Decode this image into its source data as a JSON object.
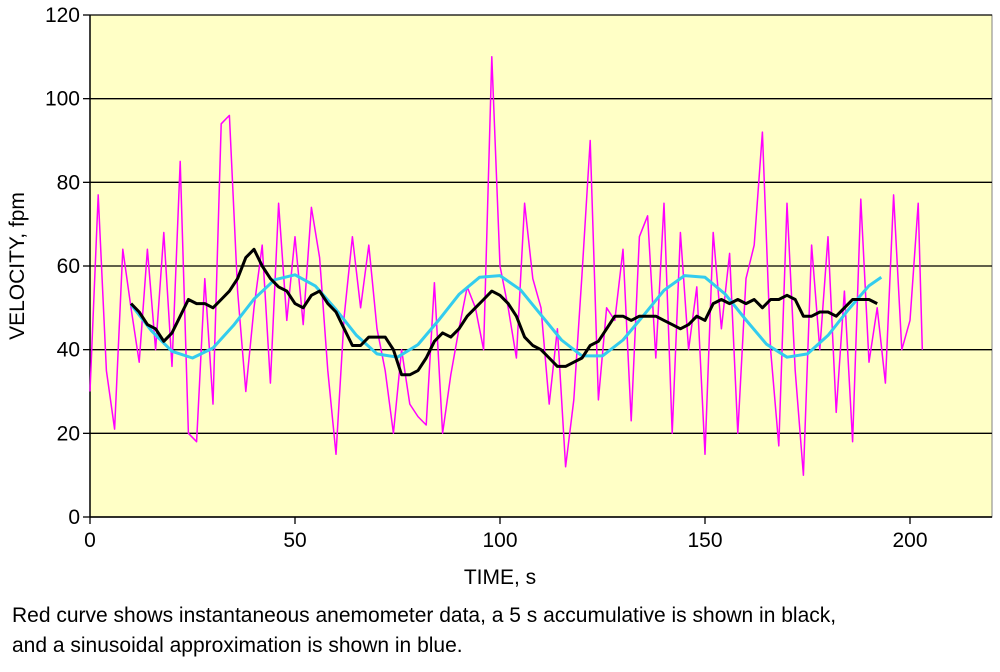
{
  "chart_data": {
    "type": "line",
    "xlabel": "TIME, s",
    "ylabel": "VELOCITY, fpm",
    "caption": [
      "Red curve shows instantaneous anemometer data, a 5 s accumulative is shown in black,",
      "and a sinusoidal approximation is shown in blue."
    ],
    "xlim": [
      0,
      220
    ],
    "xticks": [
      0,
      50,
      100,
      150,
      200
    ],
    "ylim": [
      0,
      120
    ],
    "yticks": [
      0,
      20,
      40,
      60,
      80,
      100,
      120
    ],
    "grid": true,
    "background": "#ffffc6",
    "series": [
      {
        "color": "#ff00ff",
        "x": [
          0,
          2,
          4,
          6,
          8,
          10,
          12,
          14,
          16,
          18,
          20,
          22,
          24,
          26,
          28,
          30,
          32,
          34,
          36,
          38,
          40,
          42,
          44,
          46,
          48,
          50,
          52,
          54,
          56,
          58,
          60,
          62,
          64,
          66,
          68,
          70,
          72,
          74,
          76,
          78,
          80,
          82,
          84,
          86,
          88,
          90,
          92,
          94,
          96,
          98,
          100,
          102,
          104,
          106,
          108,
          110,
          112,
          114,
          116,
          118,
          120,
          122,
          124,
          126,
          128,
          130,
          132,
          134,
          136,
          138,
          140,
          142,
          144,
          146,
          148,
          150,
          152,
          154,
          156,
          158,
          160,
          162,
          164,
          166,
          168,
          170,
          172,
          174,
          176,
          178,
          180,
          182,
          184,
          186,
          188,
          190,
          192,
          194,
          196,
          198,
          200,
          202,
          203
        ],
        "values": [
          30,
          77,
          35,
          21,
          64,
          50,
          37,
          64,
          40,
          68,
          36,
          85,
          20,
          18,
          57,
          27,
          94,
          96,
          54,
          30,
          50,
          65,
          32,
          75,
          47,
          67,
          46,
          74,
          62,
          35,
          15,
          48,
          67,
          50,
          65,
          45,
          35,
          20,
          40,
          27,
          24,
          22,
          56,
          20,
          34,
          45,
          55,
          50,
          40,
          110,
          60,
          50,
          38,
          75,
          57,
          50,
          27,
          45,
          12,
          28,
          58,
          90,
          28,
          50,
          47,
          64,
          23,
          67,
          72,
          38,
          75,
          20,
          68,
          40,
          55,
          15,
          68,
          45,
          63,
          20,
          57,
          65,
          92,
          40,
          17,
          75,
          35,
          10,
          65,
          40,
          67,
          25,
          54,
          18,
          76,
          37,
          50,
          32,
          77,
          40,
          47,
          75,
          40
        ]
      },
      {
        "color": "#33ccee",
        "x": [
          10,
          15,
          20,
          25,
          30,
          35,
          40,
          45,
          50,
          55,
          60,
          65,
          70,
          75,
          80,
          85,
          90,
          95,
          100,
          105,
          110,
          115,
          120,
          125,
          130,
          135,
          140,
          145,
          150,
          155,
          160,
          165,
          170,
          175,
          180,
          185,
          190,
          193
        ],
        "values": [
          50.8,
          44.5,
          39.6,
          38.0,
          40.4,
          45.8,
          52.1,
          56.7,
          57.9,
          55.2,
          49.6,
          43.4,
          39.0,
          38.2,
          41.2,
          47.0,
          53.2,
          57.3,
          57.7,
          54.3,
          48.3,
          42.3,
          38.5,
          38.5,
          42.3,
          48.2,
          54.2,
          57.7,
          57.3,
          53.2,
          47.1,
          41.3,
          38.2,
          39.0,
          43.4,
          49.6,
          55.3,
          57.3
        ]
      },
      {
        "color": "#000000",
        "x": [
          10,
          12,
          14,
          16,
          18,
          20,
          22,
          24,
          26,
          28,
          30,
          32,
          34,
          36,
          38,
          40,
          42,
          44,
          46,
          48,
          50,
          52,
          54,
          56,
          58,
          60,
          62,
          64,
          66,
          68,
          70,
          72,
          74,
          76,
          78,
          80,
          82,
          84,
          86,
          88,
          90,
          92,
          94,
          96,
          98,
          100,
          102,
          104,
          106,
          108,
          110,
          112,
          114,
          116,
          118,
          120,
          122,
          124,
          126,
          128,
          130,
          132,
          134,
          136,
          138,
          140,
          142,
          144,
          146,
          148,
          150,
          152,
          154,
          156,
          158,
          160,
          162,
          164,
          166,
          168,
          170,
          172,
          174,
          176,
          178,
          180,
          182,
          184,
          186,
          188,
          190,
          192
        ],
        "values": [
          51,
          49,
          46,
          45,
          42,
          44,
          48,
          52,
          51,
          51,
          50,
          52,
          54,
          57,
          62,
          64,
          60,
          57,
          55,
          54,
          51,
          50,
          53,
          54,
          51,
          49,
          45,
          41,
          41,
          43,
          43,
          43,
          40,
          34,
          34,
          35,
          38,
          42,
          44,
          43,
          45,
          48,
          50,
          52,
          54,
          53,
          51,
          48,
          43,
          41,
          40,
          38,
          36,
          36,
          37,
          38,
          41,
          42,
          45,
          48,
          48,
          47,
          48,
          48,
          48,
          47,
          46,
          45,
          46,
          48,
          47,
          51,
          52,
          51,
          52,
          51,
          52,
          50,
          52,
          52,
          53,
          52,
          48,
          48,
          49,
          49,
          48,
          50,
          52,
          52,
          52,
          51
        ]
      }
    ]
  }
}
